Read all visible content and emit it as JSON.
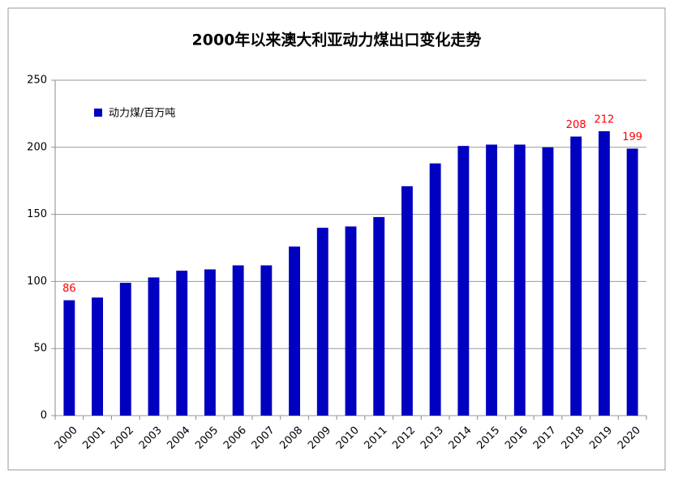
{
  "chart_data": {
    "type": "bar",
    "title": "2000年以来澳大利亚动力煤出口变化走势",
    "categories": [
      "2000",
      "2001",
      "2002",
      "2003",
      "2004",
      "2005",
      "2006",
      "2007",
      "2008",
      "2009",
      "2010",
      "2011",
      "2012",
      "2013",
      "2014",
      "2015",
      "2016",
      "2017",
      "2018",
      "2019",
      "2020"
    ],
    "series": [
      {
        "name": "动力煤/百万吨",
        "color": "#0000c0",
        "values": [
          86,
          88,
          99,
          103,
          108,
          109,
          112,
          112,
          126,
          140,
          141,
          148,
          171,
          188,
          201,
          202,
          202,
          200,
          208,
          212,
          199
        ],
        "value_labels": [
          "86",
          null,
          null,
          null,
          null,
          null,
          null,
          null,
          null,
          null,
          null,
          null,
          null,
          null,
          null,
          null,
          null,
          null,
          "208",
          "212",
          "199"
        ]
      }
    ],
    "ylim": [
      0,
      250
    ],
    "yticks": [
      0,
      50,
      100,
      150,
      200,
      250
    ],
    "grid": true,
    "legend": "top-left"
  }
}
